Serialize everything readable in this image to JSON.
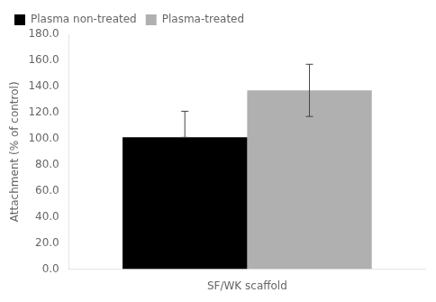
{
  "chart_data": {
    "type": "bar",
    "xlabel": "SF/WK scaffold",
    "ylabel": "Attachment (% of control)",
    "categories": [
      null
    ],
    "series": [
      {
        "name": "Plasma non-treated",
        "color": "#000000",
        "values": [
          101.0
        ],
        "error_up": [
          20.0
        ],
        "error_down": [
          0.0
        ]
      },
      {
        "name": "Plasma-treated",
        "color": "#b0b0b0",
        "values": [
          137.0
        ],
        "error_up": [
          20.0
        ],
        "error_down": [
          20.0
        ]
      }
    ],
    "ylim": [
      0,
      180
    ],
    "yticks": [
      {
        "value": 0,
        "label": "0.0"
      },
      {
        "value": 20,
        "label": "20.0"
      },
      {
        "value": 40,
        "label": "40.0"
      },
      {
        "value": 60,
        "label": "60.0"
      },
      {
        "value": 80,
        "label": "80.0"
      },
      {
        "value": 100,
        "label": "100.0"
      },
      {
        "value": 120,
        "label": "120.0"
      },
      {
        "value": 140,
        "label": "140.0"
      },
      {
        "value": 160,
        "label": "160.0"
      },
      {
        "value": 180,
        "label": "180.0"
      }
    ],
    "grid": false,
    "legend": "upper left",
    "tick_labels": "y"
  }
}
